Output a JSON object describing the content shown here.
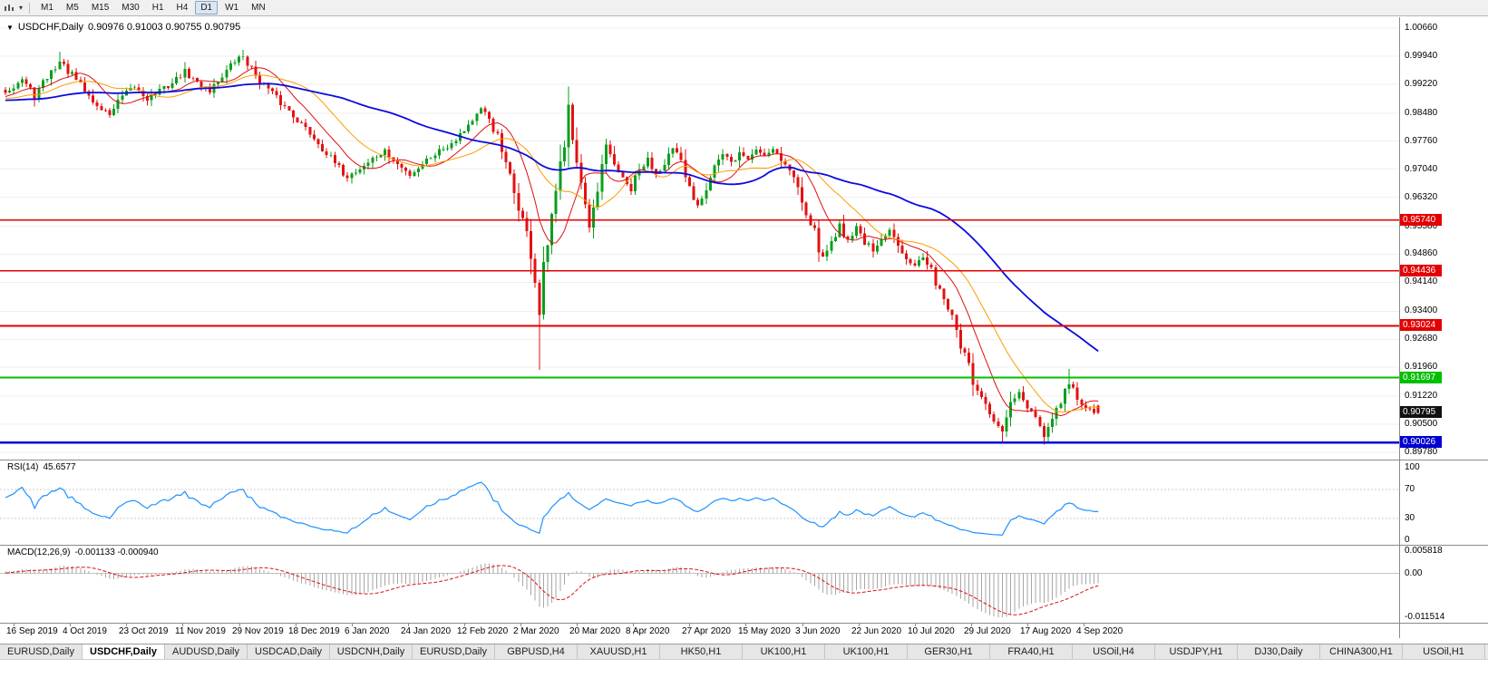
{
  "icons": {
    "chevron_down": "▾",
    "triangle_down": "▼"
  },
  "toolbar": {
    "timeframes": [
      {
        "label": "M1",
        "selected": false
      },
      {
        "label": "M5",
        "selected": false
      },
      {
        "label": "M15",
        "selected": false
      },
      {
        "label": "M30",
        "selected": false
      },
      {
        "label": "H1",
        "selected": false
      },
      {
        "label": "H4",
        "selected": false
      },
      {
        "label": "D1",
        "selected": true
      },
      {
        "label": "W1",
        "selected": false
      },
      {
        "label": "MN",
        "selected": false
      }
    ]
  },
  "chart": {
    "symbol_period": "USDCHF,Daily",
    "ohlc": "0.90976 0.91003 0.90755 0.90795"
  },
  "chart_data": {
    "type": "candlestick",
    "symbol": "USDCHF",
    "period": "Daily",
    "last_candle": {
      "open": "0.90976",
      "high": "0.91003",
      "low": "0.90755",
      "close": "0.90795"
    },
    "bars": 263,
    "price_range": {
      "max": 1.00939,
      "min": 0.89594
    },
    "price_axis": [
      "1.00660",
      "0.99940",
      "0.99220",
      "0.98480",
      "0.97760",
      "0.97040",
      "0.96320",
      "0.95580",
      "0.94860",
      "0.94140",
      "0.93400",
      "0.92680",
      "0.91960",
      "0.91220",
      "0.90500",
      "0.89780"
    ],
    "time_labels": [
      "16 Sep 2019",
      "4 Oct 2019",
      "23 Oct 2019",
      "11 Nov 2019",
      "29 Nov 2019",
      "18 Dec 2019",
      "6 Jan 2020",
      "24 Jan 2020",
      "12 Feb 2020",
      "2 Mar 2020",
      "20 Mar 2020",
      "8 Apr 2020",
      "27 Apr 2020",
      "15 May 2020",
      "3 Jun 2020",
      "22 Jun 2020",
      "10 Jul 2020",
      "29 Jul 2020",
      "17 Aug 2020",
      "4 Sep 2020"
    ],
    "colors": {
      "up": "#0a9e1d",
      "down": "#e21212",
      "grid": "#efefef"
    },
    "moving_averages": [
      {
        "period": 10,
        "color": "#dd1111",
        "width": 1
      },
      {
        "period": 21,
        "color": "#ff9b00",
        "width": 1
      },
      {
        "period": 55,
        "color": "#0b0bdf",
        "width": 1.8
      }
    ],
    "hlines": [
      {
        "price": 0.9574,
        "label": "0.95740",
        "color": "#e40000",
        "width": 1.6
      },
      {
        "price": 0.94436,
        "label": "0.94436",
        "color": "#e40000",
        "width": 1.6
      },
      {
        "price": 0.93024,
        "label": "0.93024",
        "color": "#e40000",
        "width": 1.6
      },
      {
        "price": 0.91697,
        "label": "0.91697",
        "color": "#00bf00",
        "width": 2
      },
      {
        "price": 0.90026,
        "label": "0.90026",
        "color": "#0000d2",
        "width": 2.4
      }
    ],
    "current_price": {
      "price": 0.90795,
      "label": "0.90795",
      "color": "#111111"
    },
    "waypoints": [
      [
        0,
        0.9905
      ],
      [
        4,
        0.9935
      ],
      [
        7,
        0.989
      ],
      [
        10,
        0.994
      ],
      [
        13,
        0.998
      ],
      [
        16,
        0.9945
      ],
      [
        19,
        0.9905
      ],
      [
        22,
        0.9865
      ],
      [
        25,
        0.9845
      ],
      [
        28,
        0.989
      ],
      [
        31,
        0.9915
      ],
      [
        34,
        0.9885
      ],
      [
        37,
        0.9905
      ],
      [
        40,
        0.9925
      ],
      [
        43,
        0.9955
      ],
      [
        46,
        0.9925
      ],
      [
        49,
        0.9905
      ],
      [
        52,
        0.9945
      ],
      [
        55,
        0.998
      ],
      [
        57,
        0.9995
      ],
      [
        59,
        0.996
      ],
      [
        62,
        0.992
      ],
      [
        65,
        0.9885
      ],
      [
        68,
        0.9855
      ],
      [
        71,
        0.982
      ],
      [
        74,
        0.9785
      ],
      [
        77,
        0.9745
      ],
      [
        80,
        0.9705
      ],
      [
        82,
        0.9685
      ],
      [
        85,
        0.9705
      ],
      [
        88,
        0.973
      ],
      [
        91,
        0.975
      ],
      [
        94,
        0.9715
      ],
      [
        97,
        0.969
      ],
      [
        100,
        0.972
      ],
      [
        103,
        0.9745
      ],
      [
        106,
        0.9765
      ],
      [
        109,
        0.9795
      ],
      [
        112,
        0.983
      ],
      [
        114,
        0.9855
      ],
      [
        116,
        0.9835
      ],
      [
        118,
        0.9785
      ],
      [
        120,
        0.971
      ],
      [
        122,
        0.9645
      ],
      [
        124,
        0.9575
      ],
      [
        126,
        0.949
      ],
      [
        127,
        0.942
      ],
      [
        128,
        0.933
      ],
      [
        129,
        0.943
      ],
      [
        130,
        0.951
      ],
      [
        132,
        0.963
      ],
      [
        134,
        0.979
      ],
      [
        135,
        0.988
      ],
      [
        137,
        0.972
      ],
      [
        139,
        0.96
      ],
      [
        140,
        0.9545
      ],
      [
        142,
        0.964
      ],
      [
        144,
        0.976
      ],
      [
        146,
        0.972
      ],
      [
        148,
        0.9675
      ],
      [
        150,
        0.965
      ],
      [
        152,
        0.97
      ],
      [
        154,
        0.973
      ],
      [
        156,
        0.9695
      ],
      [
        158,
        0.9725
      ],
      [
        160,
        0.9755
      ],
      [
        162,
        0.9715
      ],
      [
        164,
        0.9655
      ],
      [
        166,
        0.9615
      ],
      [
        168,
        0.9665
      ],
      [
        170,
        0.9715
      ],
      [
        172,
        0.974
      ],
      [
        174,
        0.972
      ],
      [
        176,
        0.9745
      ],
      [
        178,
        0.973
      ],
      [
        180,
        0.9755
      ],
      [
        182,
        0.974
      ],
      [
        184,
        0.976
      ],
      [
        186,
        0.973
      ],
      [
        188,
        0.97
      ],
      [
        190,
        0.966
      ],
      [
        192,
        0.96
      ],
      [
        194,
        0.954
      ],
      [
        196,
        0.9475
      ],
      [
        198,
        0.952
      ],
      [
        200,
        0.956
      ],
      [
        202,
        0.9525
      ],
      [
        204,
        0.9555
      ],
      [
        206,
        0.952
      ],
      [
        208,
        0.949
      ],
      [
        210,
        0.952
      ],
      [
        212,
        0.9545
      ],
      [
        214,
        0.9515
      ],
      [
        216,
        0.948
      ],
      [
        218,
        0.946
      ],
      [
        220,
        0.9475
      ],
      [
        222,
        0.944
      ],
      [
        224,
        0.94
      ],
      [
        226,
        0.935
      ],
      [
        228,
        0.929
      ],
      [
        230,
        0.922
      ],
      [
        232,
        0.916
      ],
      [
        234,
        0.911
      ],
      [
        236,
        0.907
      ],
      [
        238,
        0.904
      ],
      [
        239,
        0.9035
      ],
      [
        241,
        0.91
      ],
      [
        243,
        0.913
      ],
      [
        245,
        0.909
      ],
      [
        247,
        0.9055
      ],
      [
        249,
        0.902
      ],
      [
        251,
        0.906
      ],
      [
        253,
        0.9105
      ],
      [
        255,
        0.9155
      ],
      [
        257,
        0.9115
      ],
      [
        259,
        0.909
      ],
      [
        261,
        0.9078
      ],
      [
        262,
        0.90795
      ]
    ],
    "overrides": {
      "13": {
        "high": 1.0005
      },
      "57": {
        "high": 1.001
      },
      "128": {
        "low": 0.919
      },
      "135": {
        "high": 0.9916
      },
      "239": {
        "low": 0.9
      },
      "249": {
        "low": 0.8998
      },
      "255": {
        "high": 0.9192
      },
      "262": {
        "open": 0.90976,
        "high": 0.91003,
        "low": 0.90755,
        "close": 0.90795
      }
    },
    "rsi": {
      "label": "RSI(14)",
      "value": "45.6577",
      "period": 14,
      "color": "#1e90ff",
      "levels": [
        "100",
        "70",
        "30",
        "0"
      ],
      "level_values": [
        100,
        70,
        30,
        0
      ]
    },
    "macd": {
      "label": "MACD(12,26,9)",
      "values": "-0.001133 -0.000940",
      "fast": 12,
      "slow": 26,
      "signal": 9,
      "range": [
        -0.011514,
        0.005818
      ],
      "axis": [
        {
          "label": "0.005818",
          "value": 0.005818
        },
        {
          "label": "0.00",
          "value": 0
        },
        {
          "label": "-0.011514",
          "value": -0.011514
        }
      ],
      "hist_color": "#a6a6a6",
      "signal_color": "#dd1111"
    }
  },
  "tabs": [
    {
      "label": "EURUSD,Daily",
      "active": false
    },
    {
      "label": "USDCHF,Daily",
      "active": true
    },
    {
      "label": "AUDUSD,Daily",
      "active": false
    },
    {
      "label": "USDCAD,Daily",
      "active": false
    },
    {
      "label": "USDCNH,Daily",
      "active": false
    },
    {
      "label": "EURUSD,Daily",
      "active": false
    },
    {
      "label": "GBPUSD,H4",
      "active": false
    },
    {
      "label": "XAUUSD,H1",
      "active": false
    },
    {
      "label": "HK50,H1",
      "active": false
    },
    {
      "label": "UK100,H1",
      "active": false
    },
    {
      "label": "UK100,H1",
      "active": false
    },
    {
      "label": "GER30,H1",
      "active": false
    },
    {
      "label": "FRA40,H1",
      "active": false
    },
    {
      "label": "USOil,H4",
      "active": false
    },
    {
      "label": "USDJPY,H1",
      "active": false
    },
    {
      "label": "DJ30,Daily",
      "active": false
    },
    {
      "label": "CHINA300,H1",
      "active": false
    },
    {
      "label": "USOil,H1",
      "active": false
    }
  ]
}
